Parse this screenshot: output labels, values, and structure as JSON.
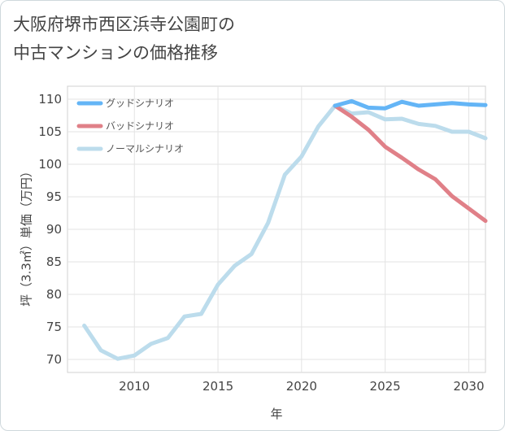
{
  "title": {
    "line1": "大阪府堺市西区浜寺公園町の",
    "line2": "中古マンションの価格推移"
  },
  "chart_data": {
    "type": "line",
    "xlabel": "年",
    "ylabel": "坪（3.3㎡）単価（万円）",
    "xlim": [
      2006,
      2031
    ],
    "ylim": [
      68,
      112
    ],
    "xticks": [
      2010,
      2015,
      2020,
      2025,
      2030
    ],
    "yticks": [
      70,
      75,
      80,
      85,
      90,
      95,
      100,
      105,
      110
    ],
    "grid": true,
    "legend_position": "top-left",
    "series": [
      {
        "name": "グッドシナリオ",
        "color": "#64b5f6",
        "x": [
          2022,
          2023,
          2024,
          2025,
          2026,
          2027,
          2028,
          2029,
          2030,
          2031
        ],
        "values": [
          109.0,
          109.7,
          108.7,
          108.6,
          109.6,
          109.0,
          109.2,
          109.4,
          109.2,
          109.1
        ]
      },
      {
        "name": "バッドシナリオ",
        "color": "#e08088",
        "x": [
          2022,
          2023,
          2024,
          2025,
          2026,
          2027,
          2028,
          2029,
          2030,
          2031
        ],
        "values": [
          109.0,
          107.3,
          105.3,
          102.7,
          101.0,
          99.2,
          97.7,
          95.1,
          93.2,
          91.3
        ]
      },
      {
        "name": "ノーマルシナリオ",
        "color": "#bcdcec",
        "x": [
          2007,
          2008,
          2009,
          2010,
          2011,
          2012,
          2013,
          2014,
          2015,
          2016,
          2017,
          2018,
          2019,
          2020,
          2021,
          2022,
          2023,
          2024,
          2025,
          2026,
          2027,
          2028,
          2029,
          2030,
          2031
        ],
        "values": [
          75.2,
          71.4,
          70.1,
          70.6,
          72.4,
          73.3,
          76.6,
          77.0,
          81.5,
          84.4,
          86.2,
          91.0,
          98.4,
          101.2,
          105.8,
          109.0,
          107.8,
          108.0,
          106.9,
          107.0,
          106.2,
          105.9,
          105.0,
          105.0,
          104.0
        ]
      }
    ]
  }
}
